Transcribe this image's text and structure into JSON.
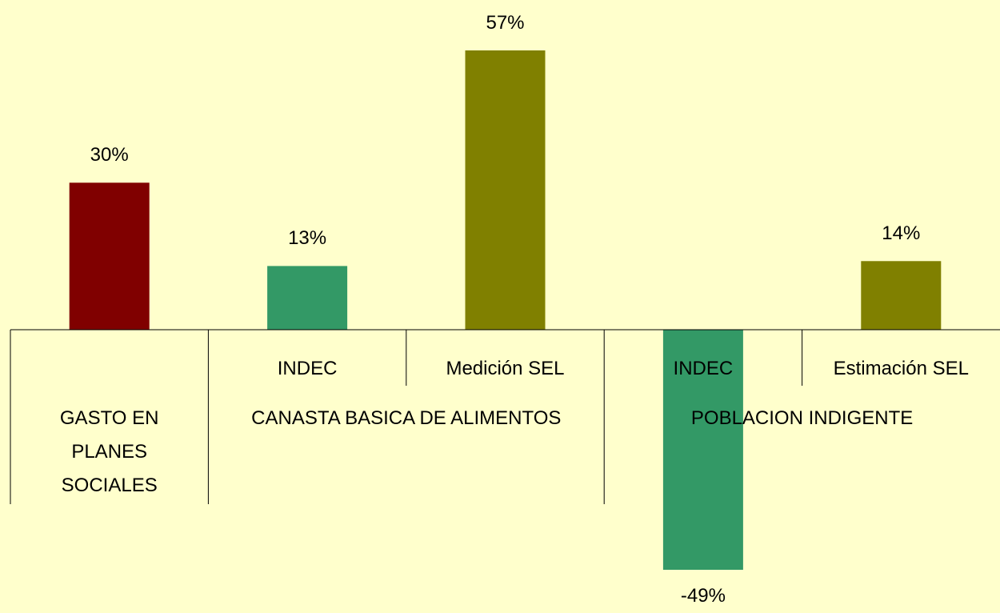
{
  "chart_data": {
    "type": "bar",
    "categories": [
      null,
      "INDEC",
      "Medición SEL",
      "INDEC",
      "Estimación SEL"
    ],
    "groups": [
      {
        "label": "GASTO EN PLANES SOCIALES",
        "span": 1
      },
      {
        "label": "CANASTA BASICA DE ALIMENTOS",
        "span": 2
      },
      {
        "label": "POBLACION INDIGENTE",
        "span": 2
      }
    ],
    "values": [
      30,
      13,
      57,
      -49,
      14
    ],
    "value_labels": [
      "30%",
      "13%",
      "57%",
      "-49%",
      "14%"
    ],
    "colors": [
      "#800000",
      "#339966",
      "#808000",
      "#339966",
      "#808000"
    ]
  }
}
